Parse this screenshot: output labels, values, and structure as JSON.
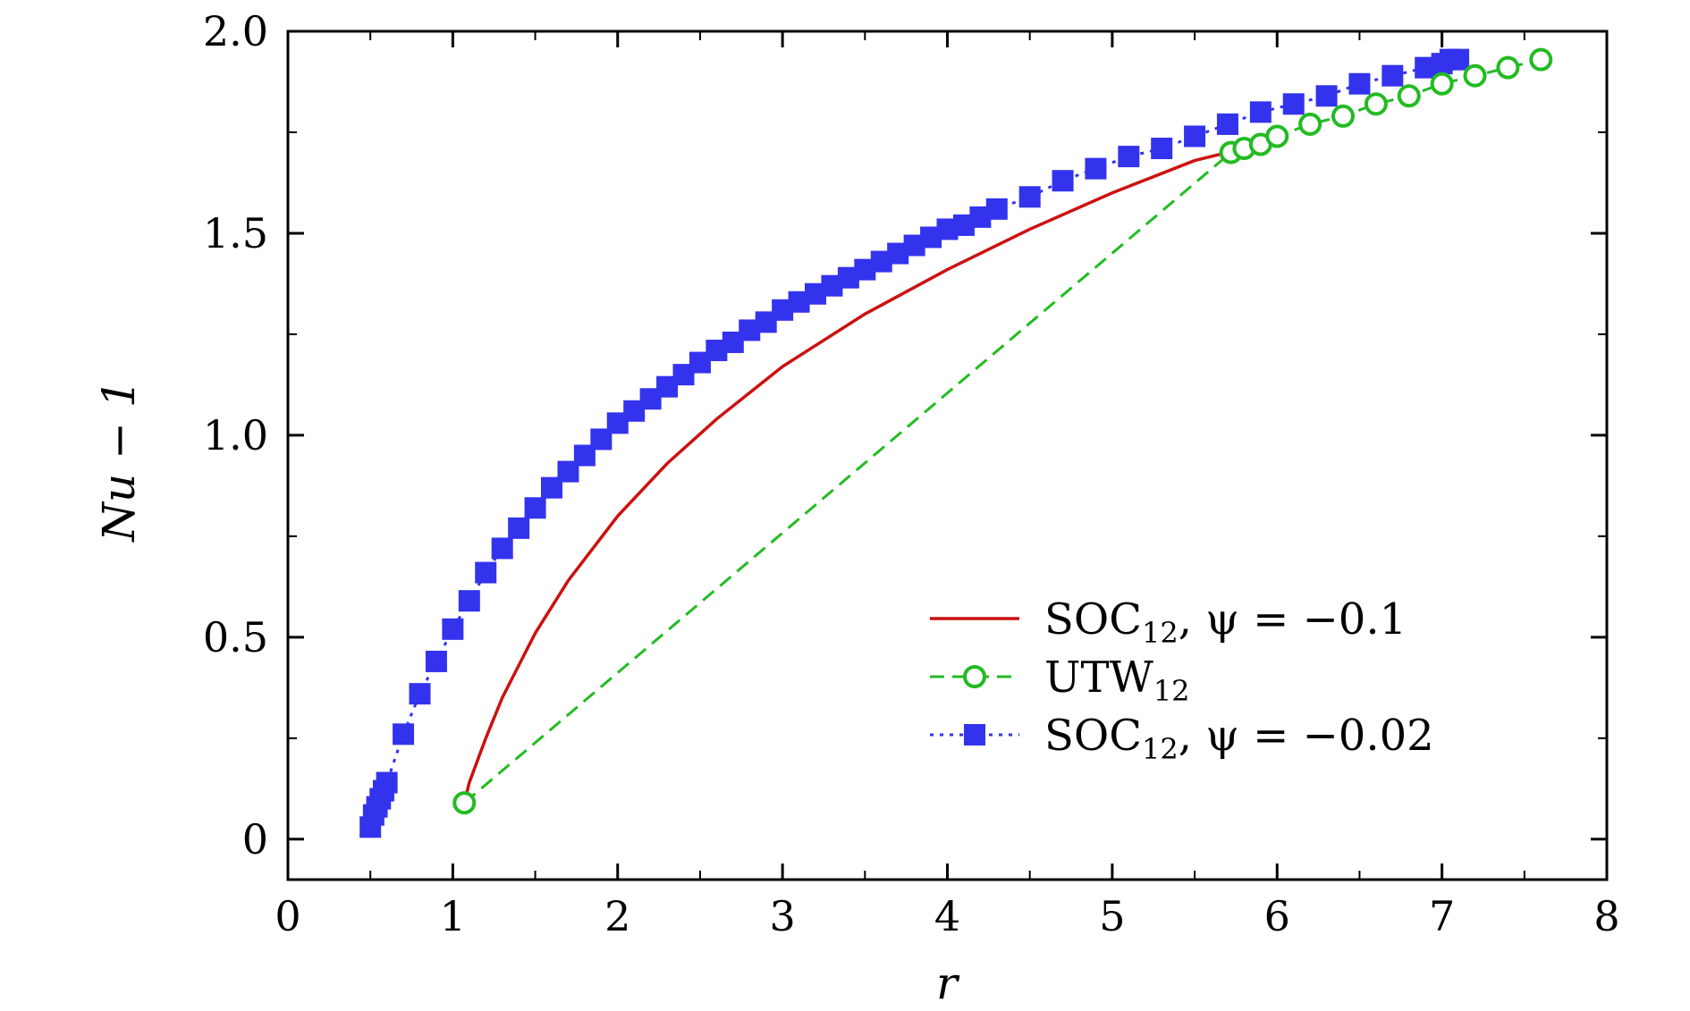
{
  "chart_data": {
    "type": "line",
    "title": "",
    "xlabel": "r",
    "ylabel": "Nu − 1",
    "xlim": [
      0,
      8
    ],
    "ylim": [
      -0.1,
      2.0
    ],
    "xticks": [
      0,
      1,
      2,
      3,
      4,
      5,
      6,
      7,
      8
    ],
    "xtick_labels": [
      "0",
      "1",
      "2",
      "3",
      "4",
      "5",
      "6",
      "7",
      "8"
    ],
    "yticks": [
      0,
      0.5,
      1.0,
      1.5,
      2.0
    ],
    "ytick_labels": [
      "0",
      "0.5",
      "1.0",
      "1.5",
      "2.0"
    ],
    "grid": false,
    "legend_position": "lower-right",
    "series": [
      {
        "name": "SOC12, ψ = −0.1",
        "legend_main": "SOC",
        "legend_sub": "12",
        "legend_rest": ", ψ = −0.1",
        "color": "#cc1111",
        "style": "solid",
        "marker": "none",
        "x": [
          1.07,
          1.1,
          1.2,
          1.3,
          1.4,
          1.5,
          1.7,
          2.0,
          2.3,
          2.6,
          3.0,
          3.5,
          4.0,
          4.5,
          5.0,
          5.5,
          5.7
        ],
        "y": [
          0.09,
          0.14,
          0.25,
          0.35,
          0.43,
          0.51,
          0.64,
          0.8,
          0.93,
          1.04,
          1.17,
          1.3,
          1.41,
          1.51,
          1.6,
          1.68,
          1.7
        ]
      },
      {
        "name": "UTW12",
        "legend_main": "UTW",
        "legend_sub": "12",
        "legend_rest": "",
        "color": "#22bb22",
        "style": "dashed",
        "marker": "open-circle",
        "x": [
          1.07,
          5.72,
          5.8,
          5.9,
          6.0,
          6.2,
          6.4,
          6.6,
          6.8,
          7.0,
          7.2,
          7.4,
          7.6
        ],
        "y": [
          0.09,
          1.7,
          1.71,
          1.72,
          1.74,
          1.77,
          1.79,
          1.82,
          1.84,
          1.87,
          1.89,
          1.91,
          1.93
        ]
      },
      {
        "name": "SOC12, ψ = −0.02",
        "legend_main": "SOC",
        "legend_sub": "12",
        "legend_rest": ", ψ = −0.02",
        "color": "#3333ee",
        "style": "dotted",
        "marker": "filled-square",
        "x": [
          0.5,
          0.52,
          0.54,
          0.56,
          0.58,
          0.6,
          0.7,
          0.8,
          0.9,
          1.0,
          1.1,
          1.2,
          1.3,
          1.4,
          1.5,
          1.6,
          1.7,
          1.8,
          1.9,
          2.0,
          2.1,
          2.2,
          2.3,
          2.4,
          2.5,
          2.6,
          2.7,
          2.8,
          2.9,
          3.0,
          3.1,
          3.2,
          3.3,
          3.4,
          3.5,
          3.6,
          3.7,
          3.8,
          3.9,
          4.0,
          4.1,
          4.2,
          4.3,
          4.5,
          4.7,
          4.9,
          5.1,
          5.3,
          5.5,
          5.7,
          5.9,
          6.1,
          6.3,
          6.5,
          6.7,
          6.9,
          7.0,
          7.05,
          7.1
        ],
        "y": [
          0.03,
          0.06,
          0.08,
          0.1,
          0.12,
          0.14,
          0.26,
          0.36,
          0.44,
          0.52,
          0.59,
          0.66,
          0.72,
          0.77,
          0.82,
          0.87,
          0.91,
          0.95,
          0.99,
          1.03,
          1.06,
          1.09,
          1.12,
          1.15,
          1.18,
          1.21,
          1.23,
          1.26,
          1.28,
          1.31,
          1.33,
          1.35,
          1.37,
          1.39,
          1.41,
          1.43,
          1.45,
          1.47,
          1.49,
          1.51,
          1.52,
          1.54,
          1.56,
          1.59,
          1.63,
          1.66,
          1.69,
          1.71,
          1.74,
          1.77,
          1.8,
          1.82,
          1.84,
          1.87,
          1.89,
          1.91,
          1.92,
          1.93,
          1.93
        ]
      }
    ]
  }
}
